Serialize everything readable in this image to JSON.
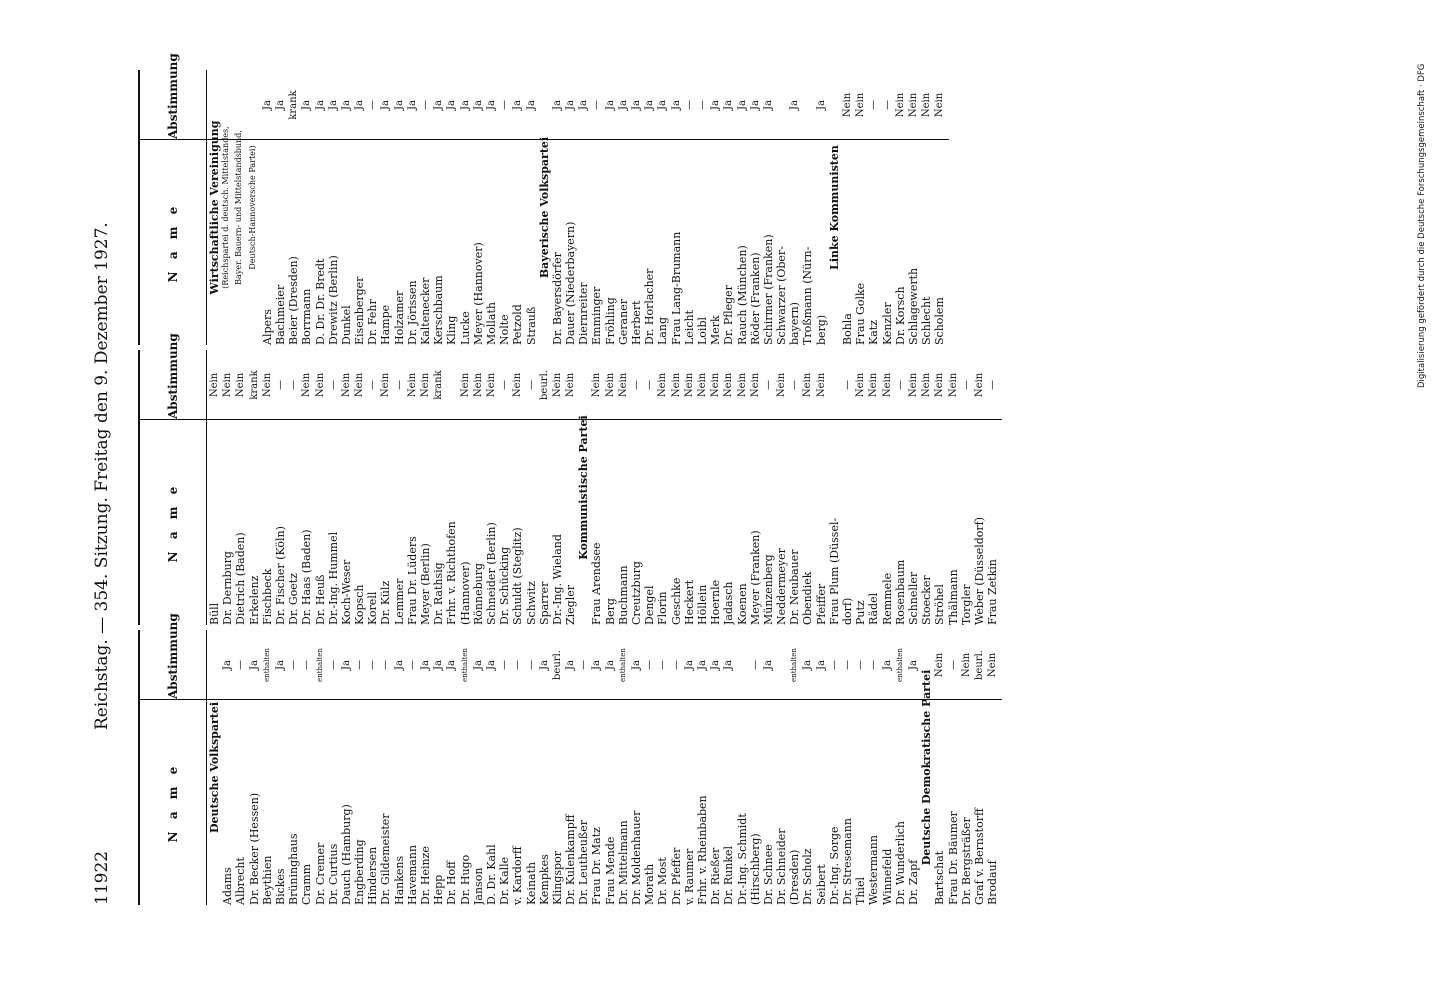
{
  "header": {
    "page": "11922",
    "title": "Reichstag. — 354. Sitzung. Freitag den 9. Dezember 1927."
  },
  "sidebar": "Digitalisierung gefördert durch die Deutsche Forschungsgemeinschaft · DFG",
  "table_headers": {
    "name": "N a m e",
    "vote": "Abstimmung"
  },
  "columns": [
    [
      {
        "party": "Deutsche Volkspartei"
      },
      {
        "n": "Adams",
        "v": "Ja"
      },
      {
        "n": "Albrecht",
        "v": "—"
      },
      {
        "n": "Dr. Becker (Hessen)",
        "v": "Ja"
      },
      {
        "n": "Beythien",
        "v": "enthalten"
      },
      {
        "n": "Bickes",
        "v": "Ja"
      },
      {
        "n": "Brüninghaus",
        "v": "—"
      },
      {
        "n": "Cramm",
        "v": "—"
      },
      {
        "n": "Dr. Cremer",
        "v": "enthalten"
      },
      {
        "n": "Dr. Curtius",
        "v": "—"
      },
      {
        "n": "Dauch (Hamburg)",
        "v": "Ja"
      },
      {
        "n": "Engberding",
        "v": "—"
      },
      {
        "n": "Hindersen",
        "v": "—"
      },
      {
        "n": "Dr. Gildemeister",
        "v": "—"
      },
      {
        "n": "Hankens",
        "v": "Ja"
      },
      {
        "n": "Havemann",
        "v": "—"
      },
      {
        "n": "Dr. Heinze",
        "v": "Ja"
      },
      {
        "n": "Hepp",
        "v": "Ja"
      },
      {
        "n": "Dr. Hoff",
        "v": "Ja"
      },
      {
        "n": "Dr. Hugo",
        "v": "enthalten"
      },
      {
        "n": "Janson",
        "v": "Ja"
      },
      {
        "n": "D. Dr. Kahl",
        "v": "Ja"
      },
      {
        "n": "Dr. Kalle",
        "v": "—"
      },
      {
        "n": "v. Kardorff",
        "v": "—"
      },
      {
        "n": "Keinath",
        "v": "—"
      },
      {
        "n": "Kempkes",
        "v": "Ja"
      },
      {
        "n": "Klingspor",
        "v": "beurl."
      },
      {
        "n": "Dr. Kulenkampff",
        "v": "Ja"
      },
      {
        "n": "Dr. Leutheußer",
        "v": "—"
      },
      {
        "n": "Frau Dr. Matz",
        "v": "Ja"
      },
      {
        "n": "Frau Mende",
        "v": "Ja"
      },
      {
        "n": "Dr. Mittelmann",
        "v": "enthalten"
      },
      {
        "n": "Dr. Moldenhauer",
        "v": "Ja"
      },
      {
        "n": "Morath",
        "v": "—"
      },
      {
        "n": "Dr. Most",
        "v": "—"
      },
      {
        "n": "Dr. Pfeffer",
        "v": "—"
      },
      {
        "n": "v. Raumer",
        "v": "Ja"
      },
      {
        "n": "Frhr. v. Rheinbaben",
        "v": "Ja"
      },
      {
        "n": "Dr. Rießer",
        "v": "Ja"
      },
      {
        "n": "Dr. Runkel",
        "v": "Ja"
      },
      {
        "n": "Dr.-Ing. Schmidt",
        "v": ""
      },
      {
        "n": "(Hirschberg)",
        "v": "—"
      },
      {
        "n": "Dr. Schnee",
        "v": "Ja"
      },
      {
        "n": "Dr. Schneider",
        "v": ""
      },
      {
        "n": "(Dresden)",
        "v": "enthalten"
      },
      {
        "n": "Dr. Scholz",
        "v": "Ja"
      },
      {
        "n": "Seibert",
        "v": "Ja"
      },
      {
        "n": "Dr.-Ing. Sorge",
        "v": "—"
      },
      {
        "n": "Dr. Stresemann",
        "v": "—"
      },
      {
        "n": "Thiel",
        "v": "—"
      },
      {
        "n": "Westermann",
        "v": "—"
      },
      {
        "n": "Winnefeld",
        "v": "Ja"
      },
      {
        "n": "Dr. Wunderlich",
        "v": "enthalten"
      },
      {
        "n": "Dr. Zapf",
        "v": "Ja"
      },
      {
        "party": "Deutsche Demokratische Partei"
      },
      {
        "n": "Bartschat",
        "v": "Nein"
      },
      {
        "n": "Frau Dr. Bäumer",
        "v": "—"
      },
      {
        "n": "Dr. Bergsträßer",
        "v": "Nein"
      },
      {
        "n": "Graf v. Bernstorff",
        "v": "beurl."
      },
      {
        "n": "Brodauf",
        "v": "Nein"
      }
    ],
    [
      {
        "n": "Büll",
        "v": "Nein"
      },
      {
        "n": "Dr. Dernburg",
        "v": "Nein"
      },
      {
        "n": "Dietrich (Baden)",
        "v": "Nein"
      },
      {
        "n": "Erkelenz",
        "v": "krank"
      },
      {
        "n": "Fischbeck",
        "v": "Nein"
      },
      {
        "n": "Dr. Fischer (Köln)",
        "v": "—"
      },
      {
        "n": "Dr. Goetz",
        "v": "—"
      },
      {
        "n": "Dr. Haas (Baden)",
        "v": "Nein"
      },
      {
        "n": "Dr. Heuß",
        "v": "Nein"
      },
      {
        "n": "Dr.-Ing. Hummel",
        "v": "—"
      },
      {
        "n": "Koch-Weser",
        "v": "Nein"
      },
      {
        "n": "Kopsch",
        "v": "Nein"
      },
      {
        "n": "Korell",
        "v": "—"
      },
      {
        "n": "Dr. Külz",
        "v": "Nein"
      },
      {
        "n": "Lemmer",
        "v": "—"
      },
      {
        "n": "Frau Dr. Lüders",
        "v": "Nein"
      },
      {
        "n": "Meyer (Berlin)",
        "v": "Nein"
      },
      {
        "n": "Dr. Rathsig",
        "v": "krank"
      },
      {
        "n": "Frhr. v. Richthofen",
        "v": ""
      },
      {
        "n": "(Hannover)",
        "v": "Nein"
      },
      {
        "n": "Rönneburg",
        "v": "Nein"
      },
      {
        "n": "Schneider (Berlin)",
        "v": "Nein"
      },
      {
        "n": "Dr. Schücking",
        "v": "—"
      },
      {
        "n": "Schuldt (Steglitz)",
        "v": "Nein"
      },
      {
        "n": "Schwitz",
        "v": "—"
      },
      {
        "n": "Sparrer",
        "v": "beurl."
      },
      {
        "n": "Dr.-Ing. Wieland",
        "v": "Nein"
      },
      {
        "n": "Ziegler",
        "v": "Nein"
      },
      {
        "party": "Kommunistische Partei"
      },
      {
        "n": "Frau Arendsee",
        "v": "Nein"
      },
      {
        "n": "Berg",
        "v": "Nein"
      },
      {
        "n": "Buchmann",
        "v": "Nein"
      },
      {
        "n": "Creutzburg",
        "v": "—"
      },
      {
        "n": "Dengel",
        "v": "—"
      },
      {
        "n": "Florin",
        "v": "Nein"
      },
      {
        "n": "Geschke",
        "v": "Nein"
      },
      {
        "n": "Heckert",
        "v": "Nein"
      },
      {
        "n": "Höllein",
        "v": "Nein"
      },
      {
        "n": "Hoernle",
        "v": "Nein"
      },
      {
        "n": "Jadasch",
        "v": "Nein"
      },
      {
        "n": "Koenen",
        "v": "Nein"
      },
      {
        "n": "Meyer (Franken)",
        "v": "Nein"
      },
      {
        "n": "Münzenberg",
        "v": "—"
      },
      {
        "n": "Neddermeyer",
        "v": "Nein"
      },
      {
        "n": "Dr. Neubauer",
        "v": "—"
      },
      {
        "n": "Obendiek",
        "v": "Nein"
      },
      {
        "n": "Pfeiffer",
        "v": "Nein"
      },
      {
        "n": "Frau Plum (Düssel-",
        "v": ""
      },
      {
        "n": "dorf)",
        "v": "—"
      },
      {
        "n": "Putz",
        "v": "Nein"
      },
      {
        "n": "Rädel",
        "v": "Nein"
      },
      {
        "n": "Remmele",
        "v": "Nein"
      },
      {
        "n": "Rosenbaum",
        "v": "—"
      },
      {
        "n": "Schneller",
        "v": "Nein"
      },
      {
        "n": "Stoecker",
        "v": "Nein"
      },
      {
        "n": "Ströhel",
        "v": "Nein"
      },
      {
        "n": "Thälmann",
        "v": "Nein"
      },
      {
        "n": "Torgler",
        "v": "—"
      },
      {
        "n": "Weber (Düsseldorf)",
        "v": "Nein"
      },
      {
        "n": "Frau Zetkin",
        "v": "—"
      }
    ],
    [
      {
        "party": "Wirtschaftliche Vereinigung"
      },
      {
        "note": "(Reichspartei d. deutsch. Mittelstandes,"
      },
      {
        "note": "Bayer. Bauern- und Mittelstandsbund,"
      },
      {
        "note": "Deutsch-Hannoversche Partei)"
      },
      {
        "n": "Alpers",
        "v": "Ja"
      },
      {
        "n": "Bachmeier",
        "v": "Ja"
      },
      {
        "n": "Beier (Dresden)",
        "v": "krank"
      },
      {
        "n": "Borrmann",
        "v": "Ja"
      },
      {
        "n": "D. Dr. Dr. Bredt",
        "v": "Ja"
      },
      {
        "n": "Drewitz (Berlin)",
        "v": "Ja"
      },
      {
        "n": "Dunkel",
        "v": "Ja"
      },
      {
        "n": "Eisenberger",
        "v": "Ja"
      },
      {
        "n": "Dr. Fehr",
        "v": "—"
      },
      {
        "n": "Hampe",
        "v": "Ja"
      },
      {
        "n": "Holzamer",
        "v": "Ja"
      },
      {
        "n": "Dr. Jörissen",
        "v": "Ja"
      },
      {
        "n": "Kaltenecker",
        "v": "—"
      },
      {
        "n": "Kerschbaum",
        "v": "Ja"
      },
      {
        "n": "Kling",
        "v": "Ja"
      },
      {
        "n": "Lucke",
        "v": "Ja"
      },
      {
        "n": "Meyer (Hannover)",
        "v": "Ja"
      },
      {
        "n": "Mollath",
        "v": "Ja"
      },
      {
        "n": "Nolte",
        "v": "—"
      },
      {
        "n": "Petzold",
        "v": "Ja"
      },
      {
        "n": "Strauß",
        "v": "Ja"
      },
      {
        "party": "Bayerische Volkspartei"
      },
      {
        "n": "Dr. Bayersdörfer",
        "v": "Ja"
      },
      {
        "n": "Dauer (Niederbayern)",
        "v": "Ja"
      },
      {
        "n": "Diernreiter",
        "v": "Ja"
      },
      {
        "n": "Emminger",
        "v": "—"
      },
      {
        "n": "Fröhling",
        "v": "Ja"
      },
      {
        "n": "Geraner",
        "v": "Ja"
      },
      {
        "n": "Herbert",
        "v": "Ja"
      },
      {
        "n": "Dr. Horlacher",
        "v": "Ja"
      },
      {
        "n": "Lang",
        "v": "Ja"
      },
      {
        "n": "Frau Lang-Brumann",
        "v": "Ja"
      },
      {
        "n": "Leicht",
        "v": "—"
      },
      {
        "n": "Loibl",
        "v": "—"
      },
      {
        "n": "Merk",
        "v": "Ja"
      },
      {
        "n": "Dr. Pfleger",
        "v": "Ja"
      },
      {
        "n": "Rauch (München)",
        "v": "Ja"
      },
      {
        "n": "Röder (Franken)",
        "v": "Ja"
      },
      {
        "n": "Schirmer (Franken)",
        "v": "Ja"
      },
      {
        "n": "Schwarzer (Ober-",
        "v": ""
      },
      {
        "n": "bayern)",
        "v": "Ja"
      },
      {
        "n": "Troßmann (Nürn-",
        "v": ""
      },
      {
        "n": "berg)",
        "v": "Ja"
      },
      {
        "party": "Linke Kommunisten"
      },
      {
        "n": "Bohla",
        "v": "Nein"
      },
      {
        "n": "Frau Golke",
        "v": "Nein"
      },
      {
        "n": "Katz",
        "v": "—"
      },
      {
        "n": "Kenzler",
        "v": "—"
      },
      {
        "n": "Dr. Korsch",
        "v": "Nein"
      },
      {
        "n": "Schlagewerth",
        "v": "Nein"
      },
      {
        "n": "Schlecht",
        "v": "Nein"
      },
      {
        "n": "Scholem",
        "v": "Nein"
      }
    ]
  ]
}
